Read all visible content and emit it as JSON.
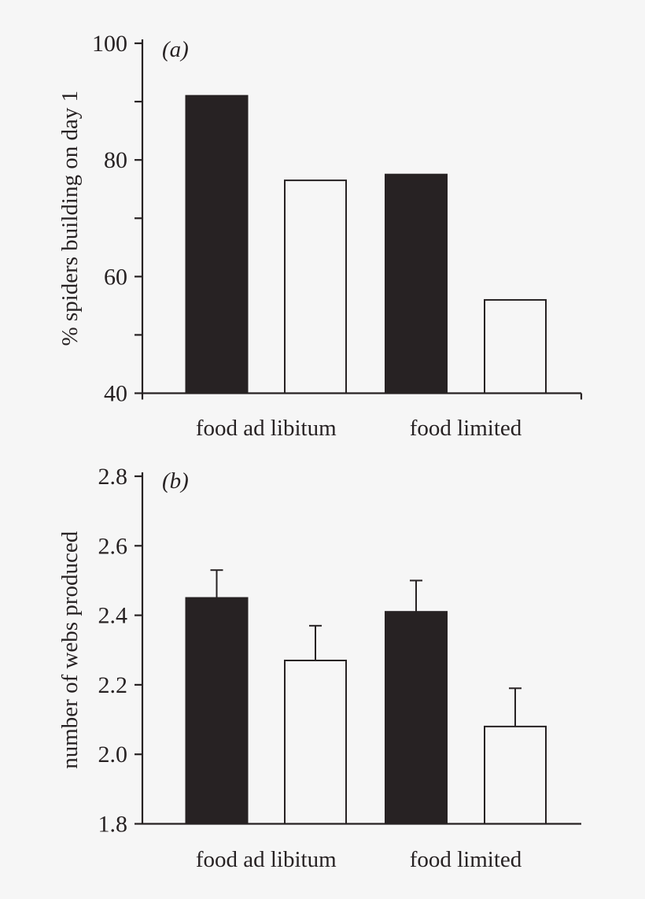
{
  "figure_title": "",
  "colors": {
    "ink": "#272223",
    "background": "#f6f6f6"
  },
  "chart_data": [
    {
      "type": "bar",
      "panel_label": "(a)",
      "title": "",
      "xlabel": "",
      "ylabel": "% spiders building on day 1",
      "categories": [
        "food ad libitum",
        "food limited"
      ],
      "series": [
        {
          "name": "filled",
          "fill": "black",
          "values": [
            91,
            77.5
          ]
        },
        {
          "name": "open",
          "fill": "white",
          "values": [
            76.5,
            56
          ]
        }
      ],
      "ylim": [
        40,
        100
      ],
      "ytick_step": 10,
      "ylabel_step": 20,
      "ytick_decimals": 0,
      "axis_end_ticks": true,
      "grid": false,
      "legend": "none"
    },
    {
      "type": "bar",
      "panel_label": "(b)",
      "title": "",
      "xlabel": "",
      "ylabel": "number of webs produced",
      "categories": [
        "food ad libitum",
        "food limited"
      ],
      "series": [
        {
          "name": "filled",
          "fill": "black",
          "values": [
            2.45,
            2.41
          ],
          "errors_up": [
            0.08,
            0.09
          ]
        },
        {
          "name": "open",
          "fill": "white",
          "values": [
            2.27,
            2.08
          ],
          "errors_up": [
            0.1,
            0.11
          ]
        }
      ],
      "ylim": [
        1.8,
        2.8
      ],
      "ytick_step": 0.2,
      "ylabel_step": 0.2,
      "ytick_decimals": 1,
      "axis_end_ticks": false,
      "grid": false,
      "legend": "none"
    }
  ]
}
